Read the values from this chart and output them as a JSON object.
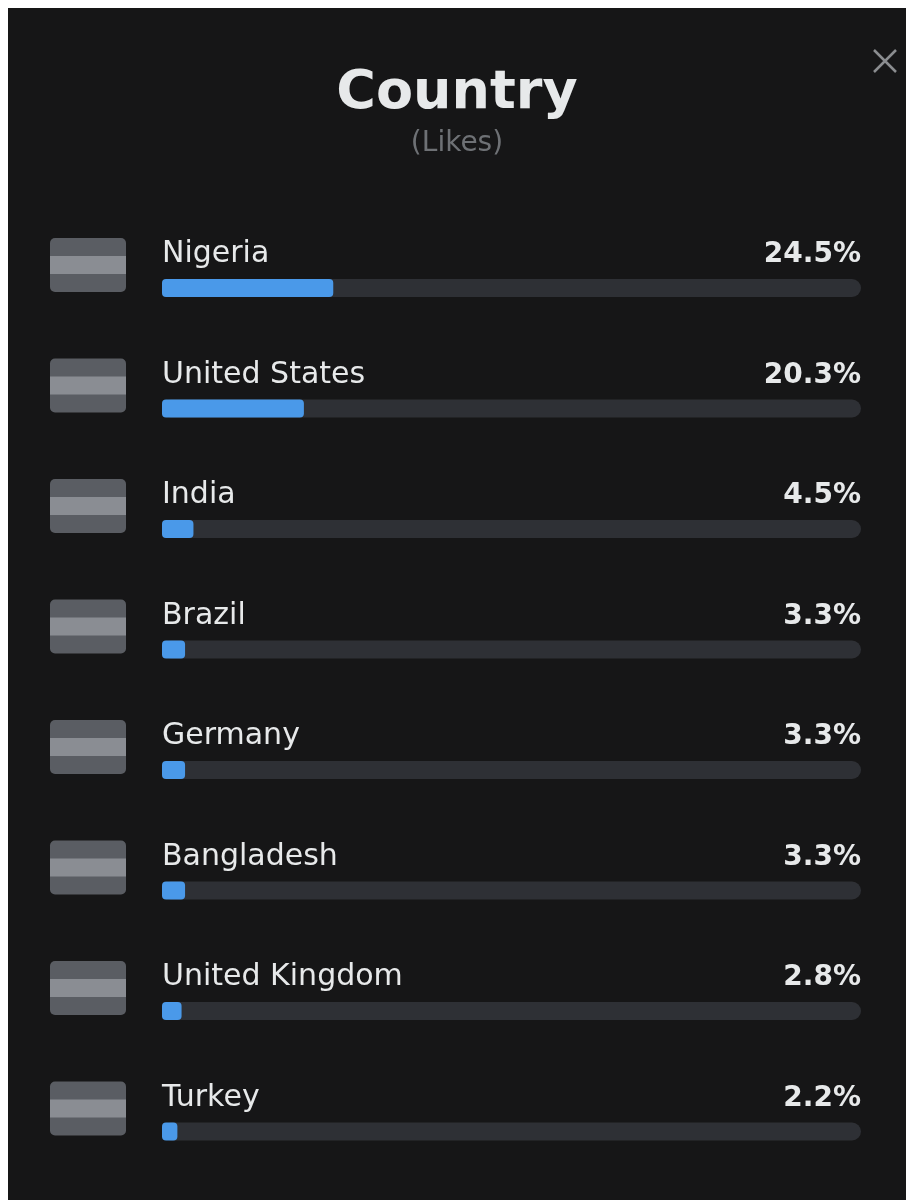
{
  "chart_data": {
    "type": "bar",
    "orientation": "horizontal",
    "title": "Country",
    "subtitle": "(Likes)",
    "categories": [
      "Nigeria",
      "United States",
      "India",
      "Brazil",
      "Germany",
      "Bangladesh",
      "United Kingdom",
      "Turkey"
    ],
    "series": [
      {
        "color": "#4a99e9",
        "values": [
          24.5,
          20.3,
          4.5,
          3.3,
          3.3,
          3.3,
          2.8,
          2.2
        ],
        "value_labels": [
          "24.5%",
          "20.3%",
          "4.5%",
          "3.3%",
          "3.3%",
          "3.3%",
          "2.8%",
          "2.2%"
        ]
      }
    ],
    "xlim": [
      0,
      100
    ],
    "tick_labels": false,
    "grid": false,
    "legend": false
  }
}
